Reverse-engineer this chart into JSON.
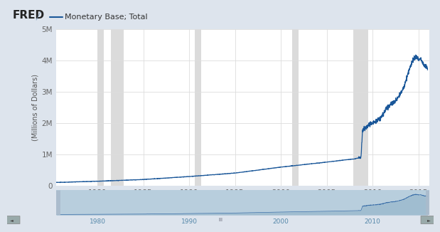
{
  "title": "Monetary Base; Total",
  "ylabel": "(Millions of Dollars)",
  "bg_color": "#dde4ed",
  "plot_bg_color": "#ffffff",
  "line_color": "#1a5799",
  "recession_color": "#cccccc",
  "recession_alpha": 0.7,
  "ylim": [
    0,
    5000000
  ],
  "yticks": [
    0,
    1000000,
    2000000,
    3000000,
    4000000,
    5000000
  ],
  "ytick_labels": [
    "0",
    "1M",
    "2M",
    "3M",
    "4M",
    "5M"
  ],
  "xmin": 1975.5,
  "xmax": 2016.2,
  "xticks": [
    1980,
    1985,
    1990,
    1995,
    2000,
    2005,
    2010,
    2015
  ],
  "recession_bands": [
    [
      1980.0,
      1980.7
    ],
    [
      1981.5,
      1982.9
    ],
    [
      1990.6,
      1991.3
    ],
    [
      2001.2,
      2001.9
    ],
    [
      2007.9,
      2009.5
    ]
  ],
  "nav_xticks": [
    1980,
    1990,
    2000,
    2010
  ],
  "nav_xtick_labels": [
    "1980",
    "1990",
    "2000",
    "2010"
  ],
  "navigator_bg": "#b8cedd",
  "navigator_line_color": "#3a6ea8",
  "navigator_fill_color": "#a0bdd0"
}
